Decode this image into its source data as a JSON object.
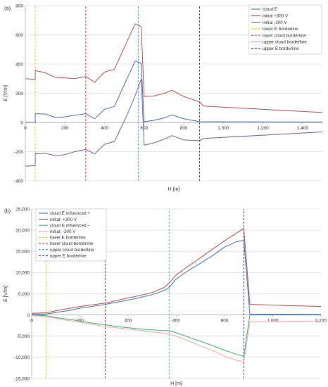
{
  "chart_data": [
    {
      "panel_label": "(a)",
      "type": "line",
      "xlabel": "H [m]",
      "ylabel": "E [V/m]",
      "xlim": [
        0,
        1500
      ],
      "ylim": [
        -400,
        800
      ],
      "xticks": [
        0,
        200,
        400,
        600,
        800,
        1000,
        1200,
        1400
      ],
      "xtick_labels": [
        "0",
        "200",
        "400",
        "600",
        "800",
        "1,000",
        "1,200",
        "1,400"
      ],
      "yticks": [
        -400,
        -200,
        0,
        200,
        400,
        600,
        800
      ],
      "ytick_labels": [
        "-400",
        "-200",
        "0",
        "200",
        "400",
        "600",
        "800"
      ],
      "grid": "horizontal",
      "legend_position": "top-right",
      "series": [
        {
          "name": "cloud E",
          "color": "#4472c4",
          "x": [
            0,
            50,
            50,
            100,
            150,
            200,
            250,
            305,
            350,
            400,
            450,
            510,
            555,
            585,
            600,
            650,
            700,
            740,
            800,
            880,
            1500
          ],
          "y": [
            0,
            0,
            60,
            58,
            35,
            38,
            50,
            60,
            25,
            90,
            110,
            290,
            420,
            405,
            5,
            15,
            30,
            52,
            25,
            5,
            3
          ]
        },
        {
          "name": "initial +300 V",
          "color": "#c0504d",
          "x": [
            0,
            50,
            50,
            100,
            150,
            200,
            250,
            305,
            350,
            400,
            450,
            510,
            555,
            585,
            600,
            650,
            700,
            740,
            800,
            880,
            900,
            1500
          ],
          "y": [
            300,
            295,
            355,
            340,
            310,
            305,
            300,
            315,
            275,
            345,
            365,
            545,
            675,
            655,
            178,
            182,
            198,
            220,
            178,
            140,
            112,
            68
          ]
        },
        {
          "name": "initial -300 V",
          "color": "#7f6299",
          "x": [
            0,
            50,
            50,
            100,
            150,
            200,
            250,
            305,
            350,
            400,
            450,
            510,
            555,
            585,
            600,
            650,
            700,
            740,
            800,
            880,
            900,
            1500
          ],
          "y": [
            -300,
            -295,
            -215,
            -210,
            -228,
            -220,
            -200,
            -185,
            -215,
            -150,
            -130,
            40,
            185,
            295,
            -155,
            -140,
            -115,
            -90,
            -120,
            -125,
            -110,
            -65
          ]
        },
        {
          "name": "lower E borderline",
          "color": "#ffc000",
          "style": "dashed",
          "x": [
            50,
            50
          ],
          "y": [
            -400,
            800
          ]
        },
        {
          "name": "lower cloud borderline",
          "color": "#e8202a",
          "style": "dashed",
          "x": [
            305,
            305
          ],
          "y": [
            -400,
            800
          ]
        },
        {
          "name": "upper cloud borderline",
          "color": "#21b1e5",
          "style": "dashed",
          "x": [
            570,
            570
          ],
          "y": [
            -400,
            800
          ]
        },
        {
          "name": "upper E borderline",
          "color": "#233f8e",
          "style": "dashed",
          "x": [
            880,
            880
          ],
          "y": [
            -400,
            800
          ]
        }
      ]
    },
    {
      "panel_label": "(b)",
      "type": "line",
      "xlabel": "H [m]",
      "ylabel": "E [V/m]",
      "xlim": [
        0,
        1200
      ],
      "ylim": [
        -15000,
        25000
      ],
      "xticks": [
        0,
        200,
        400,
        600,
        800,
        1000,
        1200
      ],
      "xtick_labels": [
        "0",
        "200",
        "400",
        "600",
        "800",
        "1,000",
        "1,200"
      ],
      "yticks": [
        -15000,
        -10000,
        -5000,
        0,
        5000,
        10000,
        15000,
        20000,
        25000
      ],
      "ytick_labels": [
        "-15,000",
        "-10,000",
        "-5,000",
        "0",
        "5,000",
        "10,000",
        "15,000",
        "20,000",
        "25,000"
      ],
      "grid": "horizontal",
      "legend_position": "top-left",
      "series": [
        {
          "name": "cloud E influenced +",
          "color": "#4472c4",
          "x": [
            0,
            60,
            100,
            150,
            200,
            250,
            305,
            350,
            400,
            450,
            500,
            550,
            570,
            600,
            650,
            700,
            750,
            800,
            850,
            880,
            905,
            1200
          ],
          "y": [
            200,
            200,
            600,
            1000,
            1600,
            2000,
            2500,
            3000,
            3500,
            4100,
            4800,
            5800,
            6500,
            8500,
            10500,
            12200,
            14000,
            16000,
            17300,
            17600,
            200,
            150
          ]
        },
        {
          "name": "initial: +300 V",
          "color": "#c0504d",
          "x": [
            0,
            60,
            100,
            150,
            200,
            250,
            305,
            350,
            400,
            450,
            500,
            550,
            570,
            600,
            650,
            700,
            750,
            800,
            850,
            880,
            905,
            1200
          ],
          "y": [
            400,
            500,
            1000,
            1500,
            2000,
            2400,
            2800,
            3400,
            4000,
            4600,
            5300,
            6500,
            7500,
            9500,
            11500,
            13500,
            15500,
            17500,
            19300,
            20400,
            2500,
            2000
          ]
        },
        {
          "name": "cloud E influenced –",
          "color": "#3cb371",
          "x": [
            0,
            60,
            100,
            150,
            200,
            250,
            305,
            350,
            400,
            450,
            500,
            550,
            570,
            600,
            650,
            700,
            750,
            800,
            850,
            880,
            905,
            1200
          ],
          "y": [
            0,
            -200,
            -600,
            -1000,
            -1400,
            -1900,
            -2300,
            -2700,
            -3000,
            -3300,
            -3500,
            -3700,
            -3700,
            -4200,
            -5200,
            -6200,
            -7200,
            -8300,
            -9300,
            -9700,
            0,
            0
          ]
        },
        {
          "name": "initial: -300 V",
          "color": "#f4a7a0",
          "x": [
            0,
            60,
            100,
            150,
            200,
            250,
            305,
            350,
            400,
            450,
            500,
            550,
            570,
            600,
            650,
            700,
            750,
            800,
            850,
            880,
            905,
            1200
          ],
          "y": [
            -100,
            -400,
            -800,
            -1300,
            -1700,
            -2200,
            -2700,
            -3000,
            -3300,
            -3600,
            -4000,
            -4300,
            -4500,
            -5000,
            -6100,
            -7300,
            -8400,
            -9700,
            -10700,
            -11100,
            -1600,
            -1400
          ]
        },
        {
          "name": "lower E borderline",
          "color": "#ffc000",
          "style": "dashed",
          "x": [
            60,
            60
          ],
          "y": [
            -15000,
            25000
          ]
        },
        {
          "name": "lower cloud borderline",
          "color": "#e8202a",
          "style": "dashed",
          "x": [
            305,
            305
          ],
          "y": [
            -15000,
            25000
          ]
        },
        {
          "name": "upper cloud borderline",
          "color": "#21b1e5",
          "style": "dashed",
          "x": [
            570,
            570
          ],
          "y": [
            -15000,
            25000
          ]
        },
        {
          "name": "upper E borderline",
          "color": "#233f8e",
          "style": "dashed",
          "x": [
            880,
            880
          ],
          "y": [
            -15000,
            25000
          ]
        }
      ]
    }
  ]
}
